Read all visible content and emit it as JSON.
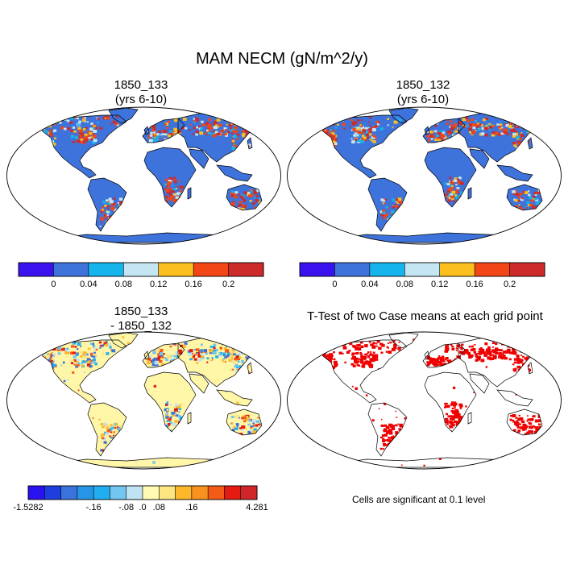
{
  "title": "MAM NECM (gN/m^2/y)",
  "panels": [
    {
      "id": "p1",
      "title_line1": "1850_133",
      "title_line2": "(yrs 6-10)"
    },
    {
      "id": "p2",
      "title_line1": "1850_132",
      "title_line2": "(yrs 6-10)"
    },
    {
      "id": "p3",
      "title_line1": "1850_133",
      "title_line2": "- 1850_132"
    },
    {
      "id": "p4",
      "title_line1": "T-Test of two Case means at each grid point",
      "title_line2": ""
    }
  ],
  "colorbar_top": {
    "colors": [
      "#3a12f0",
      "#3e73dc",
      "#15b4ec",
      "#c4e6f2",
      "#fbbf1f",
      "#f24616",
      "#cd2a2a"
    ],
    "labels": [
      "0",
      "0.04",
      "0.08",
      "0.12",
      "0.16",
      "0.2"
    ]
  },
  "colorbar_diff": {
    "colors": [
      "#2a12f0",
      "#1e3ee0",
      "#3a73dc",
      "#2596e6",
      "#21aef0",
      "#72c6ef",
      "#bfe3f2",
      "#fffbb2",
      "#fde57f",
      "#fdb72a",
      "#f8911d",
      "#f35b16",
      "#e41b10",
      "#d0262a"
    ],
    "labels": [
      "-1.5282",
      "-.16",
      "-.08",
      ".0",
      ".08",
      ".16",
      "4.281"
    ]
  },
  "ttest_note": "Cells are significant at 0.1 level",
  "map_colors": {
    "ocean": "#ffffff",
    "land_base": "#3e73dc",
    "diff_base": "#fff6a8",
    "signif": "#ee0000"
  }
}
